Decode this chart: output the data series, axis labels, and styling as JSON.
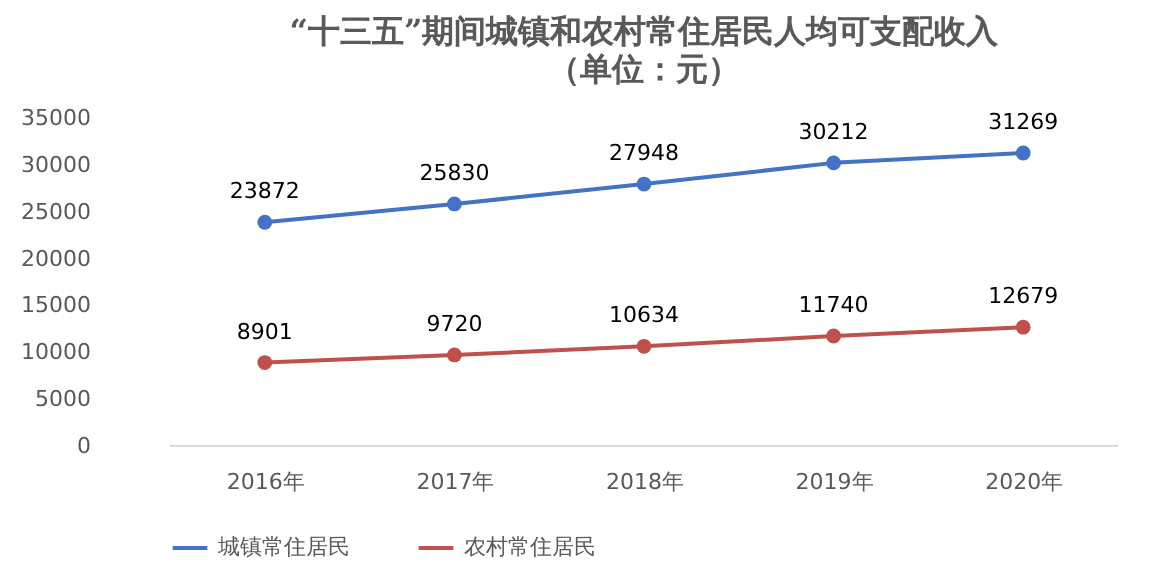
{
  "chart_data": {
    "type": "line",
    "title": "“十三五”期间城镇和农村常住居民人均可支配收入",
    "subtitle": "（单位：元）",
    "categories": [
      "2016年",
      "2017年",
      "2018年",
      "2019年",
      "2020年"
    ],
    "series": [
      {
        "name": "城镇常住居民",
        "color": "#4472c4",
        "values": [
          23872,
          25830,
          27948,
          30212,
          31269
        ]
      },
      {
        "name": "农村常住居民",
        "color": "#c0504d",
        "values": [
          8901,
          9720,
          10634,
          11740,
          12679
        ]
      }
    ],
    "ylim": [
      0,
      35000
    ],
    "yticks": [
      0,
      5000,
      10000,
      15000,
      20000,
      25000,
      30000,
      35000
    ],
    "grid": false,
    "legend": "bottom",
    "marker": "circle",
    "line_style": "solid",
    "data_labels": true
  }
}
